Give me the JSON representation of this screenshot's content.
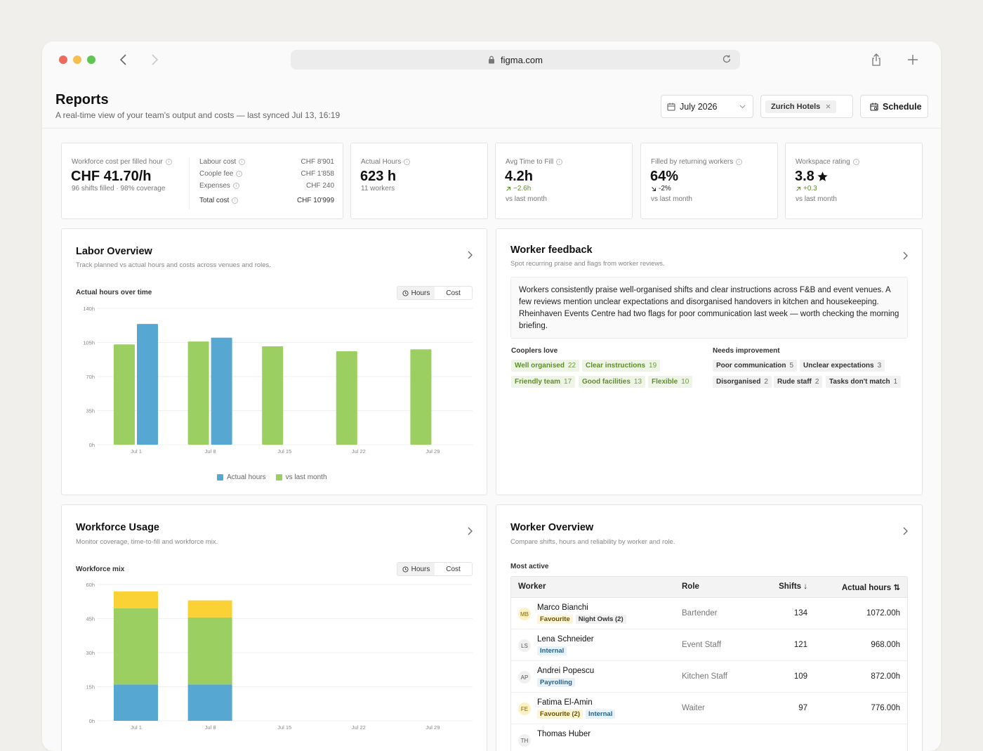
{
  "browser": {
    "url": "figma.com"
  },
  "page": {
    "title": "Reports",
    "subtitle": "A real-time view of your team's output and costs — last synced Jul 13, 16:19",
    "date_select": "July 2026",
    "filter_chip": "Zurich Hotels",
    "schedule_label": "Schedule"
  },
  "kpis": {
    "cost_per_hour": {
      "label": "Workforce cost per filled hour",
      "value": "CHF 41.70/h",
      "sub": "96 shifts filled · 98% coverage"
    },
    "cost_breakdown": [
      {
        "label": "Labour cost",
        "value": "CHF 8'901"
      },
      {
        "label": "Coople fee",
        "value": "CHF 1'858"
      },
      {
        "label": "Expenses",
        "value": "CHF 240"
      },
      {
        "label": "Total cost",
        "value": "CHF 10'999"
      }
    ],
    "actual_hours": {
      "label": "Actual Hours",
      "value": "623 h",
      "sub": "11 workers"
    },
    "avg_time": {
      "label": "Avg Time to Fill",
      "value": "4.2h",
      "delta": "−2.6h",
      "sub": "vs last month"
    },
    "returning": {
      "label": "Filled by returning workers",
      "value": "64%",
      "delta": "-2%",
      "sub": "vs last month"
    },
    "rating": {
      "label": "Workspace rating",
      "value": "3.8",
      "delta": "+0.3",
      "sub": "vs last month"
    }
  },
  "labor": {
    "title": "Labor Overview",
    "subtitle": "Track planned vs actual hours and costs across venues and roles.",
    "chart_label": "Actual hours over time",
    "toggle": [
      "Hours",
      "Cost"
    ]
  },
  "usage": {
    "title": "Workforce Usage",
    "subtitle": "Monitor coverage, time-to-fill and workforce mix.",
    "chart_label": "Workforce mix",
    "toggle": [
      "Hours",
      "Cost"
    ]
  },
  "feedback": {
    "title": "Worker feedback",
    "subtitle": "Spot recurring praise and flags from worker reviews.",
    "summary": "Workers consistently praise well-organised shifts and clear instructions across F&B and event venues. A few reviews mention unclear expectations and disorganised handovers in kitchen and housekeeping. Rheinhaven Events Centre had two flags for poor communication last week — worth checking the morning briefing.",
    "love_title": "Cooplers love",
    "love": [
      {
        "label": "Well organised",
        "count": "22"
      },
      {
        "label": "Clear instructions",
        "count": "19"
      },
      {
        "label": "Friendly team",
        "count": "17"
      },
      {
        "label": "Good facilities",
        "count": "13"
      },
      {
        "label": "Flexible",
        "count": "10"
      }
    ],
    "improve_title": "Needs improvement",
    "improve": [
      {
        "label": "Poor communication",
        "count": "5"
      },
      {
        "label": "Unclear expectations",
        "count": "3"
      },
      {
        "label": "Disorganised",
        "count": "2"
      },
      {
        "label": "Rude staff",
        "count": "2"
      },
      {
        "label": "Tasks don't match",
        "count": "1"
      }
    ]
  },
  "workers": {
    "title": "Worker Overview",
    "subtitle": "Compare shifts, hours and reliability by worker and role.",
    "table_title": "Most active",
    "headers": {
      "worker": "Worker",
      "role": "Role",
      "shifts": "Shifts ↓",
      "hours": "Actual hours ⇅"
    },
    "rows": [
      {
        "initials": "MB",
        "name": "Marco Bianchi",
        "tags": [
          "Favourite",
          "Night Owls (2)"
        ],
        "role": "Bartender",
        "shifts": "134",
        "hours": "1072.00h"
      },
      {
        "initials": "LS",
        "name": "Lena Schneider",
        "tags": [
          "Internal"
        ],
        "role": "Event Staff",
        "shifts": "121",
        "hours": "968.00h"
      },
      {
        "initials": "AP",
        "name": "Andrei Popescu",
        "tags": [
          "Payrolling"
        ],
        "role": "Kitchen Staff",
        "shifts": "109",
        "hours": "872.00h"
      },
      {
        "initials": "FE",
        "name": "Fatima El-Amin",
        "tags": [
          "Favourite (2)",
          "Internal"
        ],
        "role": "Waiter",
        "shifts": "97",
        "hours": "776.00h"
      },
      {
        "initials": "TH",
        "name": "Thomas Huber",
        "tags": [],
        "role": "",
        "shifts": "",
        "hours": ""
      }
    ]
  },
  "chart_data": [
    {
      "type": "bar",
      "title": "Actual hours over time",
      "categories": [
        "Jul 1",
        "Jul 8",
        "Jul 15",
        "Jul 22",
        "Jul 29"
      ],
      "series": [
        {
          "name": "vs last month",
          "color": "#9ccf62",
          "values": [
            103,
            106,
            101,
            96,
            98
          ]
        },
        {
          "name": "Actual hours",
          "color": "#56a8d3",
          "values": [
            124,
            110,
            null,
            null,
            null
          ]
        }
      ],
      "ylim": [
        0,
        140
      ],
      "yticks": [
        "0h",
        "35h",
        "70h",
        "105h",
        "140h"
      ],
      "grid": true,
      "legend": "bottom"
    },
    {
      "type": "bar",
      "title": "Workforce mix",
      "stacked": true,
      "categories": [
        "Jul 1",
        "Jul 8",
        "Jul 15",
        "Jul 22",
        "Jul 29"
      ],
      "series": [
        {
          "color": "#56a8d3",
          "values": [
            16,
            16,
            0,
            0,
            0
          ]
        },
        {
          "color": "#9ccf62",
          "values": [
            33.5,
            29.5,
            0,
            0,
            0
          ]
        },
        {
          "color": "#fbd235",
          "values": [
            7.5,
            7.5,
            0,
            0,
            0
          ]
        }
      ],
      "ylim": [
        0,
        60
      ],
      "yticks": [
        "0h",
        "15h",
        "30h",
        "45h",
        "60h"
      ],
      "grid": true
    }
  ]
}
